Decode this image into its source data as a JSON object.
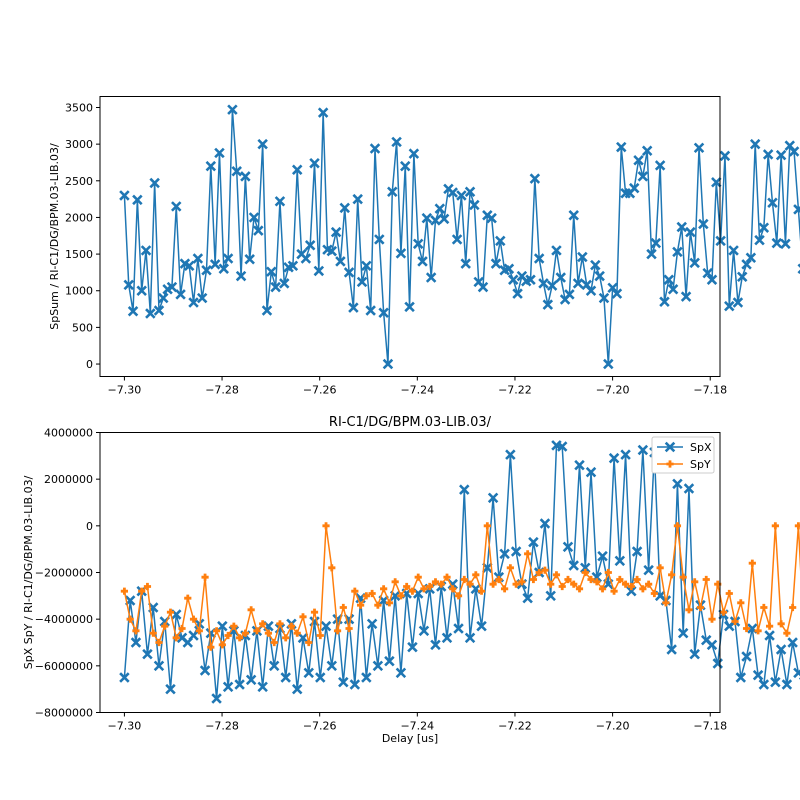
{
  "figure": {
    "top_title": "",
    "bottom_title": "RI-C1/DG/BPM.03-LIB.03/"
  },
  "chart_data": [
    {
      "type": "line",
      "title": "",
      "xlabel": "",
      "ylabel": "SpSum / RI-C1/DG/BPM.03-LIB.03/",
      "xlim": [
        -7.305,
        -7.178
      ],
      "ylim": [
        -170,
        3650
      ],
      "xticks": [
        -7.3,
        -7.28,
        -7.26,
        -7.24,
        -7.22,
        -7.2,
        -7.18
      ],
      "xtick_labels": [
        "−7.30",
        "−7.28",
        "−7.26",
        "−7.24",
        "−7.22",
        "−7.20",
        "−7.18"
      ],
      "yticks": [
        0,
        500,
        1000,
        1500,
        2000,
        2500,
        3000,
        3500
      ],
      "ytick_labels": [
        "0",
        "500",
        "1000",
        "1500",
        "2000",
        "2500",
        "3000",
        "3500"
      ],
      "legend": null,
      "series": [
        {
          "name": "SpSum",
          "color": "#1f77b4",
          "marker": "X",
          "x_start": -7.3,
          "x_step": 0.000885,
          "values": [
            2300,
            1080,
            720,
            2240,
            1000,
            1550,
            690,
            2470,
            730,
            900,
            1020,
            1050,
            2150,
            950,
            1370,
            1340,
            840,
            1440,
            900,
            1280,
            2700,
            1360,
            2880,
            1300,
            1440,
            3470,
            2630,
            1200,
            2560,
            1430,
            2000,
            1820,
            3000,
            730,
            1260,
            1050,
            2220,
            1100,
            1320,
            1340,
            2650,
            1500,
            1440,
            1620,
            2740,
            1270,
            3430,
            1560,
            1540,
            1800,
            1400,
            2130,
            1250,
            770,
            2250,
            1120,
            1340,
            730,
            2940,
            1700,
            700,
            0,
            2350,
            3030,
            1510,
            2700,
            780,
            2870,
            1640,
            1400,
            1990,
            1180,
            1960,
            2120,
            1980,
            2390,
            2340,
            1700,
            2300,
            1370,
            2350,
            2170,
            1120,
            1050,
            2030,
            1990,
            1370,
            1680,
            1280,
            1300,
            1150,
            960,
            1200,
            1130,
            1150,
            2530,
            1440,
            1100,
            810,
            1070,
            1550,
            1180,
            880,
            950,
            2030,
            1100,
            1460,
            1080,
            1000,
            1350,
            1200,
            900,
            0,
            1040,
            960,
            2960,
            2330,
            2330,
            2400,
            2780,
            2560,
            2910,
            1500,
            1650,
            2710,
            850,
            1150,
            1020,
            1530,
            1870,
            920,
            1800,
            1380,
            2950,
            1910,
            1240,
            1150,
            2480,
            1680,
            2840,
            790,
            1550,
            840,
            1190,
            1360,
            1450,
            3000,
            1690,
            1860,
            2860,
            2200,
            1650,
            2850,
            1640,
            2980,
            2900,
            2110,
            1300,
            1670,
            1420,
            930,
            1900,
            1600,
            1860,
            1350,
            1500,
            1290,
            1730,
            1200,
            1580,
            1280,
            1040,
            1550,
            1310,
            2220,
            980,
            1550,
            1260,
            2620,
            2360,
            1300,
            2480,
            1470,
            1650,
            2270,
            1570,
            2800,
            1080,
            1670,
            1380,
            1320,
            2720,
            0,
            2120,
            1270,
            2800,
            1900,
            1720,
            1460,
            1880,
            2620,
            0,
            2560,
            2620,
            1350,
            1820,
            2310,
            1390,
            1790,
            2800,
            1730,
            1300,
            1950,
            2000,
            1180,
            1740,
            2150,
            1460,
            1840,
            2050,
            1570,
            1530,
            1150,
            1480,
            1810,
            1130,
            2190,
            1700,
            1560,
            1340,
            1940,
            1120,
            1000,
            820,
            680,
            2620,
            1370,
            1120,
            1000,
            1560,
            1300,
            2900,
            1280,
            1760,
            1260,
            890,
            910,
            870,
            850,
            810,
            2350,
            1060,
            1250,
            1200,
            930,
            760,
            760,
            1500,
            1030,
            2840,
            1150,
            950,
            1220,
            810,
            1380,
            750,
            650,
            1570,
            1050,
            720,
            1060,
            980,
            1000,
            760,
            3010,
            1190,
            1600,
            1040,
            740,
            690,
            1540,
            2640,
            1610,
            1540,
            920,
            1800,
            2270,
            730,
            2000,
            1300,
            2820,
            1200,
            900,
            1010,
            1580,
            2760,
            870,
            640,
            1000,
            2750,
            680,
            760,
            1070,
            1020,
            930,
            1350
          ]
        }
      ]
    },
    {
      "type": "line",
      "title": "RI-C1/DG/BPM.03-LIB.03/",
      "xlabel": "Delay [us]",
      "ylabel": "SpX SpY / RI-C1/DG/BPM.03-LIB.03/",
      "xlim": [
        -7.305,
        -7.178
      ],
      "ylim": [
        -8000000,
        4000000
      ],
      "xticks": [
        -7.3,
        -7.28,
        -7.26,
        -7.24,
        -7.22,
        -7.2,
        -7.18
      ],
      "xtick_labels": [
        "−7.30",
        "−7.28",
        "−7.26",
        "−7.24",
        "−7.22",
        "−7.20",
        "−7.18"
      ],
      "yticks": [
        -8000000,
        -6000000,
        -4000000,
        -2000000,
        0,
        2000000,
        4000000
      ],
      "ytick_labels": [
        "−8000000",
        "−6000000",
        "−4000000",
        "−2000000",
        "0",
        "2000000",
        "4000000"
      ],
      "legend": {
        "position": "top-right",
        "entries": [
          "SpX",
          "SpY"
        ]
      },
      "series": [
        {
          "name": "SpX",
          "color": "#1f77b4",
          "marker": "X",
          "x_start": -7.3,
          "x_step": 0.00118,
          "values": [
            -6500000,
            -3200000,
            -5000000,
            -2800000,
            -5500000,
            -3500000,
            -6000000,
            -4100000,
            -7000000,
            -3800000,
            -4800000,
            -5000000,
            -4700000,
            -4200000,
            -6200000,
            -4600000,
            -7400000,
            -4300000,
            -6900000,
            -4500000,
            -6800000,
            -4700000,
            -6600000,
            -4500000,
            -6900000,
            -4300000,
            -6000000,
            -4400000,
            -6500000,
            -4200000,
            -7000000,
            -4800000,
            -6300000,
            -4100000,
            -6500000,
            -4300000,
            -6000000,
            -4000000,
            -6700000,
            -4000000,
            -6800000,
            -3100000,
            -6500000,
            -4200000,
            -6000000,
            -3200000,
            -5800000,
            -3000000,
            -6300000,
            -2900000,
            -5200000,
            -2900000,
            -4500000,
            -2700000,
            -5100000,
            -2600000,
            -4800000,
            -2500000,
            -4400000,
            1550000,
            -4800000,
            -2700000,
            -4300000,
            -1800000,
            1200000,
            -2200000,
            -1200000,
            3050000,
            -1100000,
            -2500000,
            -3100000,
            -700000,
            -2000000,
            100000,
            -3000000,
            3450000,
            3400000,
            -900000,
            -1700000,
            2600000,
            -1800000,
            2300000,
            -2200000,
            -1300000,
            -2500000,
            2900000,
            -1500000,
            3050000,
            -2800000,
            -1100000,
            3250000,
            -1900000,
            3150000,
            -3000000,
            -3200000,
            -5300000,
            1800000,
            -4600000,
            1600000,
            -5500000,
            -3400000,
            -4900000,
            -5100000,
            -5900000,
            -3800000,
            -4300000,
            -4100000,
            -6500000,
            -5600000,
            -4400000,
            -6400000,
            -6800000,
            -4700000,
            -6700000,
            -5300000,
            -6800000,
            -5000000,
            -6300000,
            -6400000,
            -5000000,
            -6500000,
            -4800000,
            -6400000,
            -5500000,
            -6300000,
            -4300000,
            -6000000,
            -6700000,
            -4100000,
            -6400000,
            -4700000,
            -6500000,
            -4500000,
            -6300000,
            -4500000,
            -6900000,
            -4200000,
            -6200000,
            -4600000,
            -5800000,
            -4000000,
            -5200000,
            -3700000,
            -4200000,
            -7300000,
            -4800000,
            -5800000
          ]
        },
        {
          "name": "SpY",
          "color": "#ff7f0e",
          "marker": "P",
          "x_start": -7.3,
          "x_step": 0.00118,
          "values": [
            -2800000,
            -4000000,
            -4500000,
            -2800000,
            -2600000,
            -4600000,
            -5000000,
            -4300000,
            -3700000,
            -4800000,
            -4400000,
            -3100000,
            -4000000,
            -4500000,
            -2200000,
            -5200000,
            -4500000,
            -5100000,
            -4700000,
            -4300000,
            -4800000,
            -4600000,
            -3600000,
            -4500000,
            -4200000,
            -4600000,
            -5000000,
            -4200000,
            -4800000,
            -4300000,
            -4600000,
            -3900000,
            -5000000,
            -3700000,
            -4700000,
            0,
            -1800000,
            -4500000,
            -3500000,
            -4400000,
            -2800000,
            -3400000,
            -3000000,
            -2900000,
            -3400000,
            -2700000,
            -3300000,
            -2400000,
            -3000000,
            -2600000,
            -2800000,
            -2200000,
            -2700000,
            -2600000,
            -2400000,
            -2500000,
            -2200000,
            -2700000,
            -3000000,
            -2300000,
            -2500000,
            -2100000,
            -2800000,
            0,
            -2500000,
            -2300000,
            -2700000,
            -1800000,
            -2500000,
            -2400000,
            -1200000,
            -2300000,
            -2000000,
            -1900000,
            -2500000,
            -2100000,
            -2600000,
            -2300000,
            -2500000,
            -2700000,
            -2000000,
            -2300000,
            -2400000,
            -2700000,
            -2000000,
            -2800000,
            -2300000,
            -2500000,
            -2600000,
            -2300000,
            -2700000,
            -2500000,
            -2900000,
            -1800000,
            -3300000,
            -2100000,
            0,
            -2200000,
            -3600000,
            -2400000,
            -3500000,
            -2300000,
            -4000000,
            -2500000,
            -3700000,
            -2900000,
            -4100000,
            -3300000,
            -4400000,
            -1600000,
            -4500000,
            -3500000,
            -4300000,
            0,
            -4200000,
            -4600000,
            -3500000,
            0,
            -4800000,
            -4000000,
            -5000000,
            -4300000,
            -4200000,
            -4800000,
            -4600000,
            -4200000,
            -4700000,
            -4400000,
            -4400000,
            -4600000,
            -4800000,
            -4100000,
            -1800000,
            -4700000,
            -3900000,
            -4200000,
            -3600000,
            -4500000,
            -4300000,
            -3700000,
            -4600000,
            -3500000,
            -4800000,
            -2700000,
            -5300000,
            -1600000,
            -4100000,
            -5100000,
            -4000000,
            -3900000
          ]
        }
      ]
    }
  ]
}
